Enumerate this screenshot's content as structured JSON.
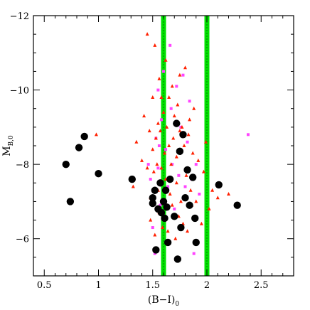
{
  "chart_data": {
    "type": "scatter",
    "xlabel": "(B−I)",
    "xlabel_sub": "0",
    "ylabel": "M",
    "ylabel_sub": "B,0",
    "xlim": [
      0.4,
      2.8
    ],
    "ylim": [
      -12,
      -5
    ],
    "y_inverted": true,
    "grid": false,
    "x_ticks": [
      0.5,
      1,
      1.5,
      2,
      2.5
    ],
    "x_tick_labels": [
      "0.5",
      "1",
      "1.5",
      "2",
      "2.5"
    ],
    "y_ticks": [
      -12,
      -10,
      -8,
      -6
    ],
    "y_tick_labels": [
      "−12",
      "−10",
      "−8",
      "−6"
    ],
    "vertical_bands": [
      {
        "x": 1.6,
        "color": "#00e000"
      },
      {
        "x": 2.0,
        "color": "#00e000"
      }
    ],
    "series": [
      {
        "marker": "circle",
        "color": "#000000",
        "points": [
          [
            0.7,
            -8.0
          ],
          [
            0.74,
            -7.0
          ],
          [
            0.82,
            -8.45
          ],
          [
            0.87,
            -8.75
          ],
          [
            1.0,
            -7.75
          ],
          [
            1.31,
            -7.6
          ],
          [
            1.5,
            -7.1
          ],
          [
            1.5,
            -6.95
          ],
          [
            1.52,
            -7.3
          ],
          [
            1.53,
            -5.7
          ],
          [
            1.55,
            -6.8
          ],
          [
            1.57,
            -7.5
          ],
          [
            1.58,
            -6.7
          ],
          [
            1.6,
            -7.0
          ],
          [
            1.61,
            -6.55
          ],
          [
            1.62,
            -7.3
          ],
          [
            1.63,
            -6.85
          ],
          [
            1.64,
            -5.9
          ],
          [
            1.66,
            -7.6
          ],
          [
            1.7,
            -6.6
          ],
          [
            1.72,
            -9.1
          ],
          [
            1.73,
            -5.45
          ],
          [
            1.75,
            -8.35
          ],
          [
            1.76,
            -6.3
          ],
          [
            1.78,
            -8.8
          ],
          [
            1.8,
            -7.1
          ],
          [
            1.82,
            -7.85
          ],
          [
            1.84,
            -6.9
          ],
          [
            1.87,
            -7.65
          ],
          [
            1.89,
            -6.55
          ],
          [
            1.9,
            -5.9
          ],
          [
            2.11,
            -7.45
          ],
          [
            2.28,
            -6.9
          ]
        ]
      },
      {
        "marker": "triangle",
        "color": "#ff2000",
        "points": [
          [
            0.98,
            -8.8
          ],
          [
            1.32,
            -7.4
          ],
          [
            1.35,
            -8.6
          ],
          [
            1.4,
            -8.1
          ],
          [
            1.42,
            -9.3
          ],
          [
            1.45,
            -11.5
          ],
          [
            1.45,
            -7.9
          ],
          [
            1.47,
            -8.9
          ],
          [
            1.48,
            -7.1
          ],
          [
            1.48,
            -6.5
          ],
          [
            1.5,
            -9.8
          ],
          [
            1.5,
            -8.4
          ],
          [
            1.51,
            -7.8
          ],
          [
            1.52,
            -11.2
          ],
          [
            1.52,
            -6.1
          ],
          [
            1.53,
            -8.7
          ],
          [
            1.54,
            -8.0
          ],
          [
            1.55,
            -9.1
          ],
          [
            1.55,
            -7.3
          ],
          [
            1.56,
            -10.3
          ],
          [
            1.56,
            -6.7
          ],
          [
            1.57,
            -8.9
          ],
          [
            1.58,
            -9.8
          ],
          [
            1.58,
            -7.9
          ],
          [
            1.59,
            -6.3
          ],
          [
            1.6,
            -9.4
          ],
          [
            1.61,
            -8.3
          ],
          [
            1.62,
            -10.8
          ],
          [
            1.62,
            -7.6
          ],
          [
            1.63,
            -9.0
          ],
          [
            1.64,
            -6.2
          ],
          [
            1.65,
            -8.5
          ],
          [
            1.65,
            -9.8
          ],
          [
            1.66,
            -7.2
          ],
          [
            1.67,
            -8.0
          ],
          [
            1.68,
            -10.1
          ],
          [
            1.68,
            -6.9
          ],
          [
            1.69,
            -8.7
          ],
          [
            1.7,
            -9.3
          ],
          [
            1.71,
            -6.0
          ],
          [
            1.72,
            -8.2
          ],
          [
            1.72,
            -7.5
          ],
          [
            1.73,
            -9.6
          ],
          [
            1.74,
            -6.6
          ],
          [
            1.75,
            -10.4
          ],
          [
            1.75,
            -8.9
          ],
          [
            1.76,
            -7.0
          ],
          [
            1.77,
            -9.0
          ],
          [
            1.78,
            -6.4
          ],
          [
            1.79,
            -8.5
          ],
          [
            1.8,
            -10.6
          ],
          [
            1.81,
            -7.7
          ],
          [
            1.82,
            -6.2
          ],
          [
            1.83,
            -8.8
          ],
          [
            1.84,
            -9.2
          ],
          [
            1.85,
            -7.3
          ],
          [
            1.86,
            -6.9
          ],
          [
            1.87,
            -8.3
          ],
          [
            1.88,
            -9.5
          ],
          [
            1.9,
            -7.0
          ],
          [
            1.92,
            -8.1
          ],
          [
            1.95,
            -6.4
          ],
          [
            1.97,
            -7.8
          ],
          [
            1.99,
            -8.6
          ],
          [
            2.02,
            -6.8
          ],
          [
            2.05,
            -7.3
          ],
          [
            2.1,
            -7.1
          ],
          [
            2.2,
            -7.2
          ]
        ]
      },
      {
        "marker": "square",
        "color": "#ff44ff",
        "points": [
          [
            1.46,
            -8.0
          ],
          [
            1.48,
            -7.6
          ],
          [
            1.5,
            -6.3
          ],
          [
            1.52,
            -5.6
          ],
          [
            1.53,
            -8.7
          ],
          [
            1.55,
            -10.0
          ],
          [
            1.55,
            -7.9
          ],
          [
            1.56,
            -8.5
          ],
          [
            1.57,
            -6.9
          ],
          [
            1.58,
            -9.2
          ],
          [
            1.6,
            -10.5
          ],
          [
            1.62,
            -8.4
          ],
          [
            1.64,
            -7.4
          ],
          [
            1.66,
            -11.2
          ],
          [
            1.67,
            -9.5
          ],
          [
            1.68,
            -8.0
          ],
          [
            1.7,
            -6.8
          ],
          [
            1.72,
            -10.1
          ],
          [
            1.74,
            -7.7
          ],
          [
            1.76,
            -9.0
          ],
          [
            1.78,
            -10.4
          ],
          [
            1.8,
            -7.4
          ],
          [
            1.82,
            -8.6
          ],
          [
            1.84,
            -9.7
          ],
          [
            1.86,
            -7.6
          ],
          [
            1.88,
            -5.6
          ],
          [
            1.9,
            -8.0
          ],
          [
            1.93,
            -7.2
          ],
          [
            2.38,
            -8.8
          ]
        ]
      }
    ]
  }
}
